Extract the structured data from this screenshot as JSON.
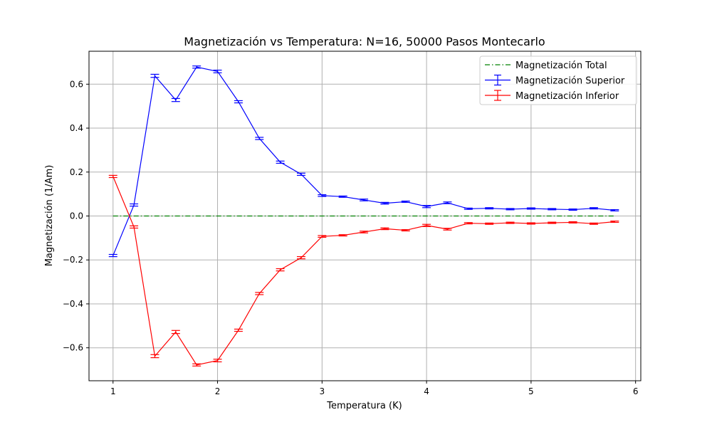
{
  "chart_data": {
    "type": "line",
    "title": "Magnetización vs Temperatura: N=16, 50000 Pasos Montecarlo",
    "xlabel": "Temperatura (K)",
    "ylabel": "Magnetización (1/Am)",
    "xlim": [
      0.77,
      6.05
    ],
    "ylim": [
      -0.75,
      0.75
    ],
    "xticks": [
      1,
      2,
      3,
      4,
      5,
      6
    ],
    "xtick_labels": [
      "1",
      "2",
      "3",
      "4",
      "5",
      "6"
    ],
    "yticks": [
      -0.6,
      -0.4,
      -0.2,
      0.0,
      0.2,
      0.4,
      0.6
    ],
    "ytick_labels": [
      "−0.6",
      "−0.4",
      "−0.2",
      "0.0",
      "0.2",
      "0.4",
      "0.6"
    ],
    "grid": true,
    "legend_position": "top-right",
    "x": [
      1.0,
      1.2,
      1.4,
      1.6,
      1.8,
      2.0,
      2.2,
      2.4,
      2.6,
      2.8,
      3.0,
      3.2,
      3.4,
      3.6,
      3.8,
      4.0,
      4.2,
      4.4,
      4.6,
      4.8,
      5.0,
      5.2,
      5.4,
      5.6,
      5.8
    ],
    "series": [
      {
        "name": "Magnetización Total",
        "color": "#008000",
        "style": "dashdot",
        "errorbars": false,
        "x": [
          1.0,
          5.8
        ],
        "values": [
          0.0,
          0.0
        ]
      },
      {
        "name": "Magnetización Superior",
        "color": "#0000ff",
        "style": "solid",
        "errorbars": true,
        "values": [
          -0.18,
          0.05,
          0.638,
          0.528,
          0.678,
          0.658,
          0.52,
          0.353,
          0.245,
          0.19,
          0.093,
          0.088,
          0.073,
          0.058,
          0.065,
          0.043,
          0.06,
          0.033,
          0.035,
          0.031,
          0.034,
          0.031,
          0.029,
          0.035,
          0.026
        ],
        "errors": [
          0.005,
          0.005,
          0.007,
          0.007,
          0.005,
          0.006,
          0.005,
          0.005,
          0.005,
          0.005,
          0.004,
          0.003,
          0.004,
          0.004,
          0.003,
          0.005,
          0.004,
          0.003,
          0.003,
          0.003,
          0.003,
          0.003,
          0.003,
          0.003,
          0.003
        ]
      },
      {
        "name": "Magnetización Inferior",
        "color": "#ff0000",
        "style": "solid",
        "errorbars": true,
        "values": [
          0.18,
          -0.05,
          -0.638,
          -0.528,
          -0.678,
          -0.658,
          -0.52,
          -0.353,
          -0.245,
          -0.19,
          -0.093,
          -0.088,
          -0.073,
          -0.058,
          -0.065,
          -0.043,
          -0.06,
          -0.033,
          -0.035,
          -0.031,
          -0.034,
          -0.031,
          -0.029,
          -0.035,
          -0.026
        ],
        "errors": [
          0.005,
          0.005,
          0.007,
          0.007,
          0.005,
          0.006,
          0.005,
          0.005,
          0.005,
          0.005,
          0.004,
          0.003,
          0.004,
          0.004,
          0.003,
          0.005,
          0.004,
          0.003,
          0.003,
          0.003,
          0.003,
          0.003,
          0.003,
          0.003,
          0.003
        ]
      }
    ]
  }
}
